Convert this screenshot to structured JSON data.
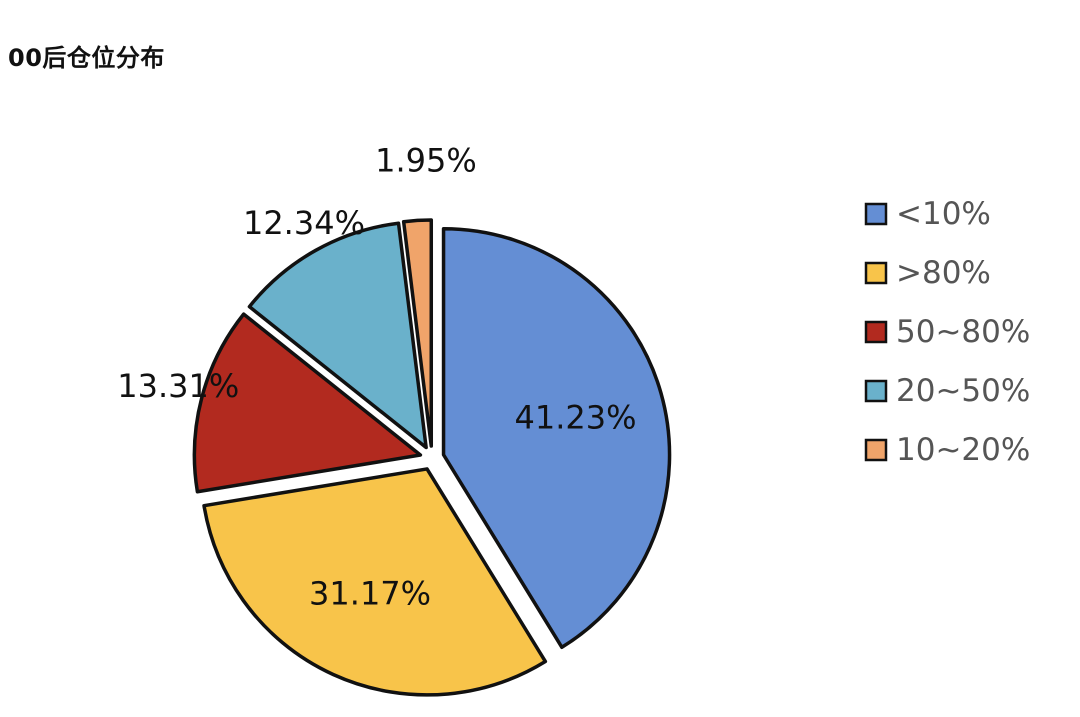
{
  "header": {
    "title": "00后仓位分布"
  },
  "chart_data": {
    "type": "pie",
    "title": "00后仓位分布",
    "start_angle_deg": 0,
    "direction": "clockwise",
    "exploded": true,
    "legend_position": "right",
    "slices": [
      {
        "label": "<10%",
        "value": 41.23,
        "value_label": "41.23%",
        "color": "#648ED4"
      },
      {
        "label": ">80%",
        "value": 31.17,
        "value_label": "31.17%",
        "color": "#F8C44A"
      },
      {
        "label": "50~80%",
        "value": 13.31,
        "value_label": "13.31%",
        "color": "#B22A1F"
      },
      {
        "label": "20~50%",
        "value": 12.34,
        "value_label": "12.34%",
        "color": "#6AB1CB"
      },
      {
        "label": "10~20%",
        "value": 1.95,
        "value_label": "1.95%",
        "color": "#F0A46A"
      }
    ],
    "legend": [
      "<10%",
      ">80%",
      "50~80%",
      "20~50%",
      "10~20%"
    ]
  }
}
